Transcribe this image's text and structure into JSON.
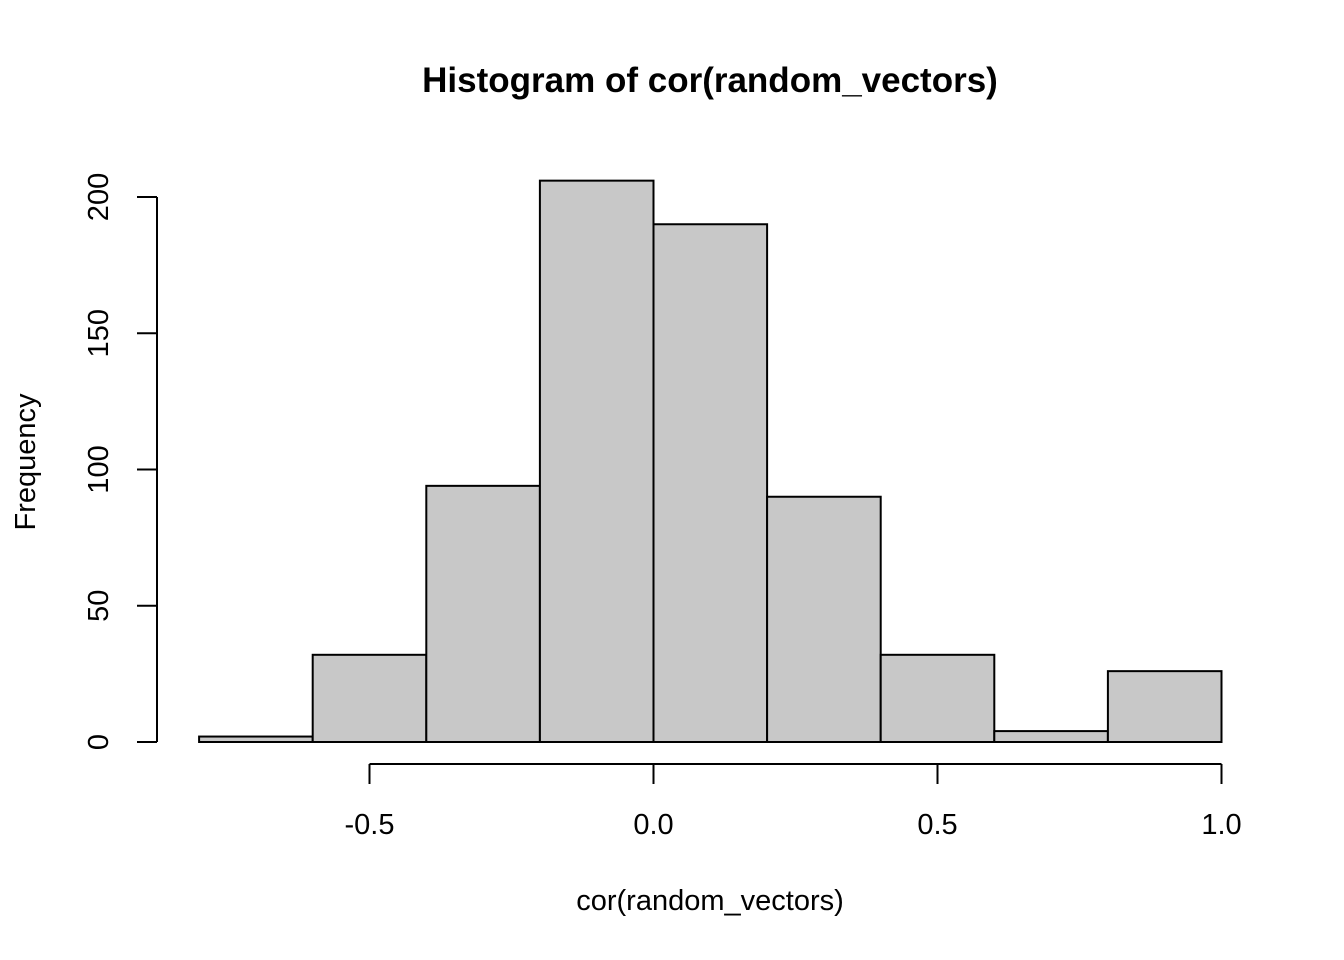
{
  "chart_data": {
    "type": "bar",
    "title": "Histogram of cor(random_vectors)",
    "xlabel": "cor(random_vectors)",
    "ylabel": "Frequency",
    "bins": [
      {
        "x0": -0.8,
        "x1": -0.6,
        "count": 2
      },
      {
        "x0": -0.6,
        "x1": -0.4,
        "count": 32
      },
      {
        "x0": -0.4,
        "x1": -0.2,
        "count": 94
      },
      {
        "x0": -0.2,
        "x1": 0.0,
        "count": 206
      },
      {
        "x0": 0.0,
        "x1": 0.2,
        "count": 190
      },
      {
        "x0": 0.2,
        "x1": 0.4,
        "count": 90
      },
      {
        "x0": 0.4,
        "x1": 0.6,
        "count": 32
      },
      {
        "x0": 0.6,
        "x1": 0.8,
        "count": 4
      },
      {
        "x0": 0.8,
        "x1": 1.0,
        "count": 26
      }
    ],
    "x_ticks": [
      {
        "value": -0.5,
        "label": "-0.5"
      },
      {
        "value": 0.0,
        "label": "0.0"
      },
      {
        "value": 0.5,
        "label": "0.5"
      },
      {
        "value": 1.0,
        "label": "1.0"
      }
    ],
    "y_ticks": [
      {
        "value": 0,
        "label": "0"
      },
      {
        "value": 50,
        "label": "50"
      },
      {
        "value": 100,
        "label": "100"
      },
      {
        "value": 150,
        "label": "150"
      },
      {
        "value": 200,
        "label": "200"
      }
    ],
    "xlim": [
      -0.8,
      1.0
    ],
    "ylim": [
      0,
      200
    ],
    "grid": false,
    "bar_fill": "#c8c8c8",
    "bar_stroke": "#000000"
  }
}
